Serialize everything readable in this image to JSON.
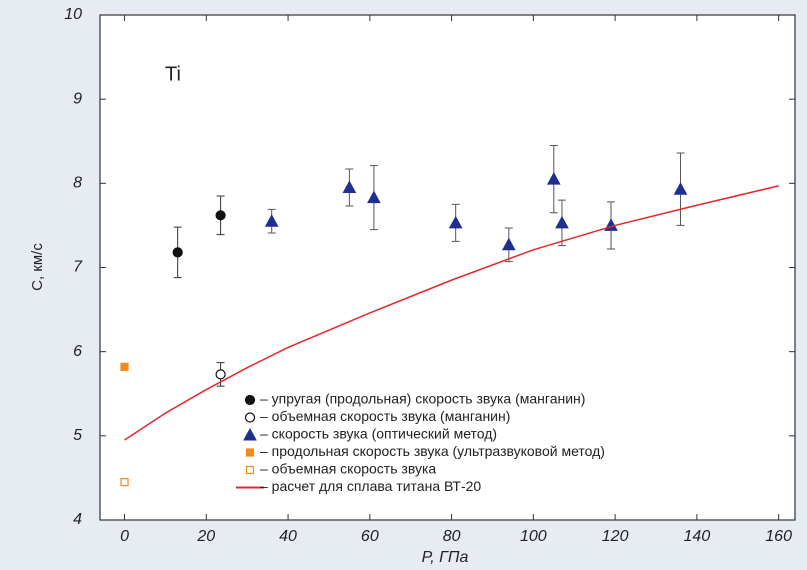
{
  "chart_data": {
    "type": "scatter",
    "annotation": "Ti",
    "x_label": "P, ГПа",
    "y_label": "С, км/с",
    "xlim": [
      -6,
      164
    ],
    "ylim": [
      4,
      10
    ],
    "xticks": [
      0,
      20,
      40,
      60,
      80,
      100,
      120,
      140,
      160
    ],
    "yticks": [
      4,
      5,
      6,
      7,
      8,
      9,
      10
    ],
    "series": [
      {
        "name": "– упругая (продольная) скорость звука (манганин)",
        "color": "#111111",
        "marker": "circle",
        "filled": true,
        "x": [
          13,
          23.5
        ],
        "values": [
          7.18,
          7.62
        ],
        "errors": [
          0.3,
          0.23
        ]
      },
      {
        "name": "– объемная скорость звука (манганин)",
        "color": "#111111",
        "marker": "circle",
        "filled": false,
        "x": [
          23.5
        ],
        "values": [
          5.73
        ],
        "errors": [
          0.14
        ]
      },
      {
        "name": "– скорость звука (оптический метод)",
        "color": "#1f2f8f",
        "marker": "triangle",
        "filled": true,
        "x": [
          36,
          55,
          61,
          81,
          94,
          105,
          107,
          119,
          136
        ],
        "values": [
          7.55,
          7.95,
          7.83,
          7.53,
          7.27,
          8.05,
          7.53,
          7.5,
          7.93
        ],
        "errors": [
          0.14,
          0.22,
          0.38,
          0.22,
          0.2,
          0.4,
          0.27,
          0.28,
          0.43
        ]
      },
      {
        "name": "– продольная скорость звука (ультразвуковой метод)",
        "color": "#f08a1c",
        "marker": "square",
        "filled": true,
        "x": [
          0
        ],
        "values": [
          5.82
        ]
      },
      {
        "name": "– объемная скорость звука",
        "color": "#f08a1c",
        "marker": "square",
        "filled": false,
        "x": [
          0
        ],
        "values": [
          4.45
        ]
      },
      {
        "name": "– расчет для сплава титана ВТ-20",
        "color": "#e8262a",
        "marker": "line",
        "x": [
          0,
          10,
          20,
          30,
          40,
          60,
          80,
          100,
          120,
          140,
          160
        ],
        "values": [
          4.95,
          5.27,
          5.55,
          5.81,
          6.05,
          6.46,
          6.85,
          7.21,
          7.5,
          7.74,
          7.97
        ]
      }
    ]
  }
}
